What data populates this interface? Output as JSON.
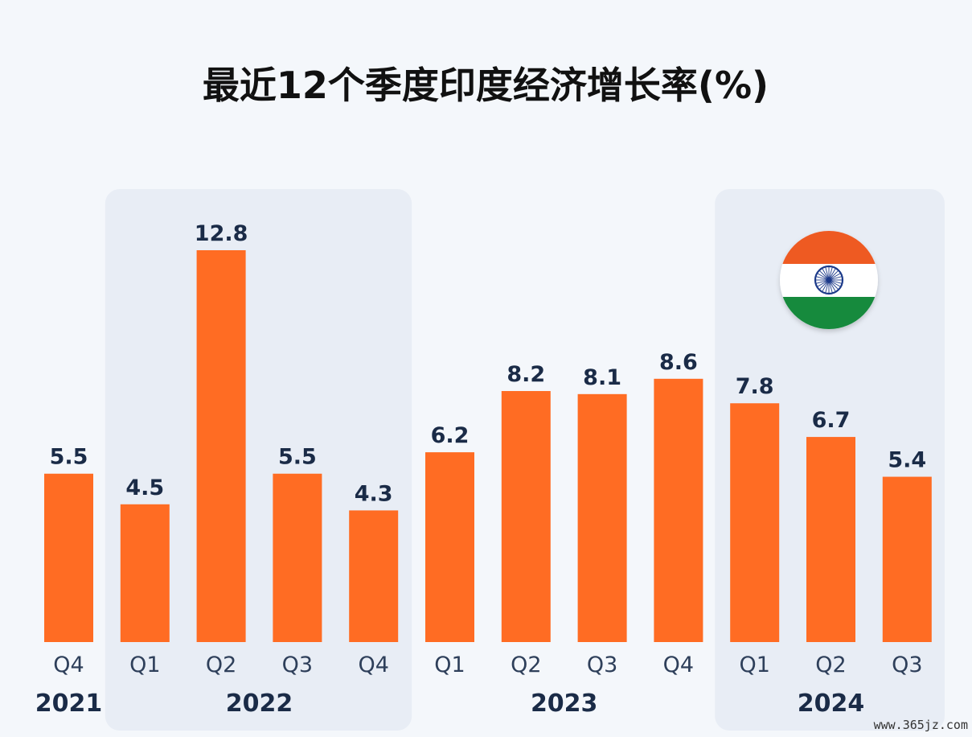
{
  "chart_data": {
    "type": "bar",
    "title": "最近12个季度印度经济增长率(%)",
    "categories": [
      "Q4",
      "Q1",
      "Q2",
      "Q3",
      "Q4",
      "Q1",
      "Q2",
      "Q3",
      "Q4",
      "Q1",
      "Q2",
      "Q3"
    ],
    "values": [
      5.5,
      4.5,
      12.8,
      5.5,
      4.3,
      6.2,
      8.2,
      8.1,
      8.6,
      7.8,
      6.7,
      5.4
    ],
    "year_groups": [
      {
        "label": "2021",
        "start": 0,
        "end": 0,
        "shaded": false
      },
      {
        "label": "2022",
        "start": 1,
        "end": 4,
        "shaded": true
      },
      {
        "label": "2023",
        "start": 5,
        "end": 8,
        "shaded": false
      },
      {
        "label": "2024",
        "start": 9,
        "end": 11,
        "shaded": true
      }
    ],
    "ylim": [
      0,
      12.8
    ],
    "grid": false,
    "colors": {
      "bar": "#ff6c23",
      "shade": "#e8edf5",
      "value_text": "#1a2b47"
    }
  },
  "flag": {
    "name": "india-flag-icon",
    "colors": {
      "saffron": "#ee5a24",
      "white": "#ffffff",
      "green": "#138a3c",
      "chakra": "#1f3a8a"
    }
  },
  "watermark": "www.365jz.com"
}
